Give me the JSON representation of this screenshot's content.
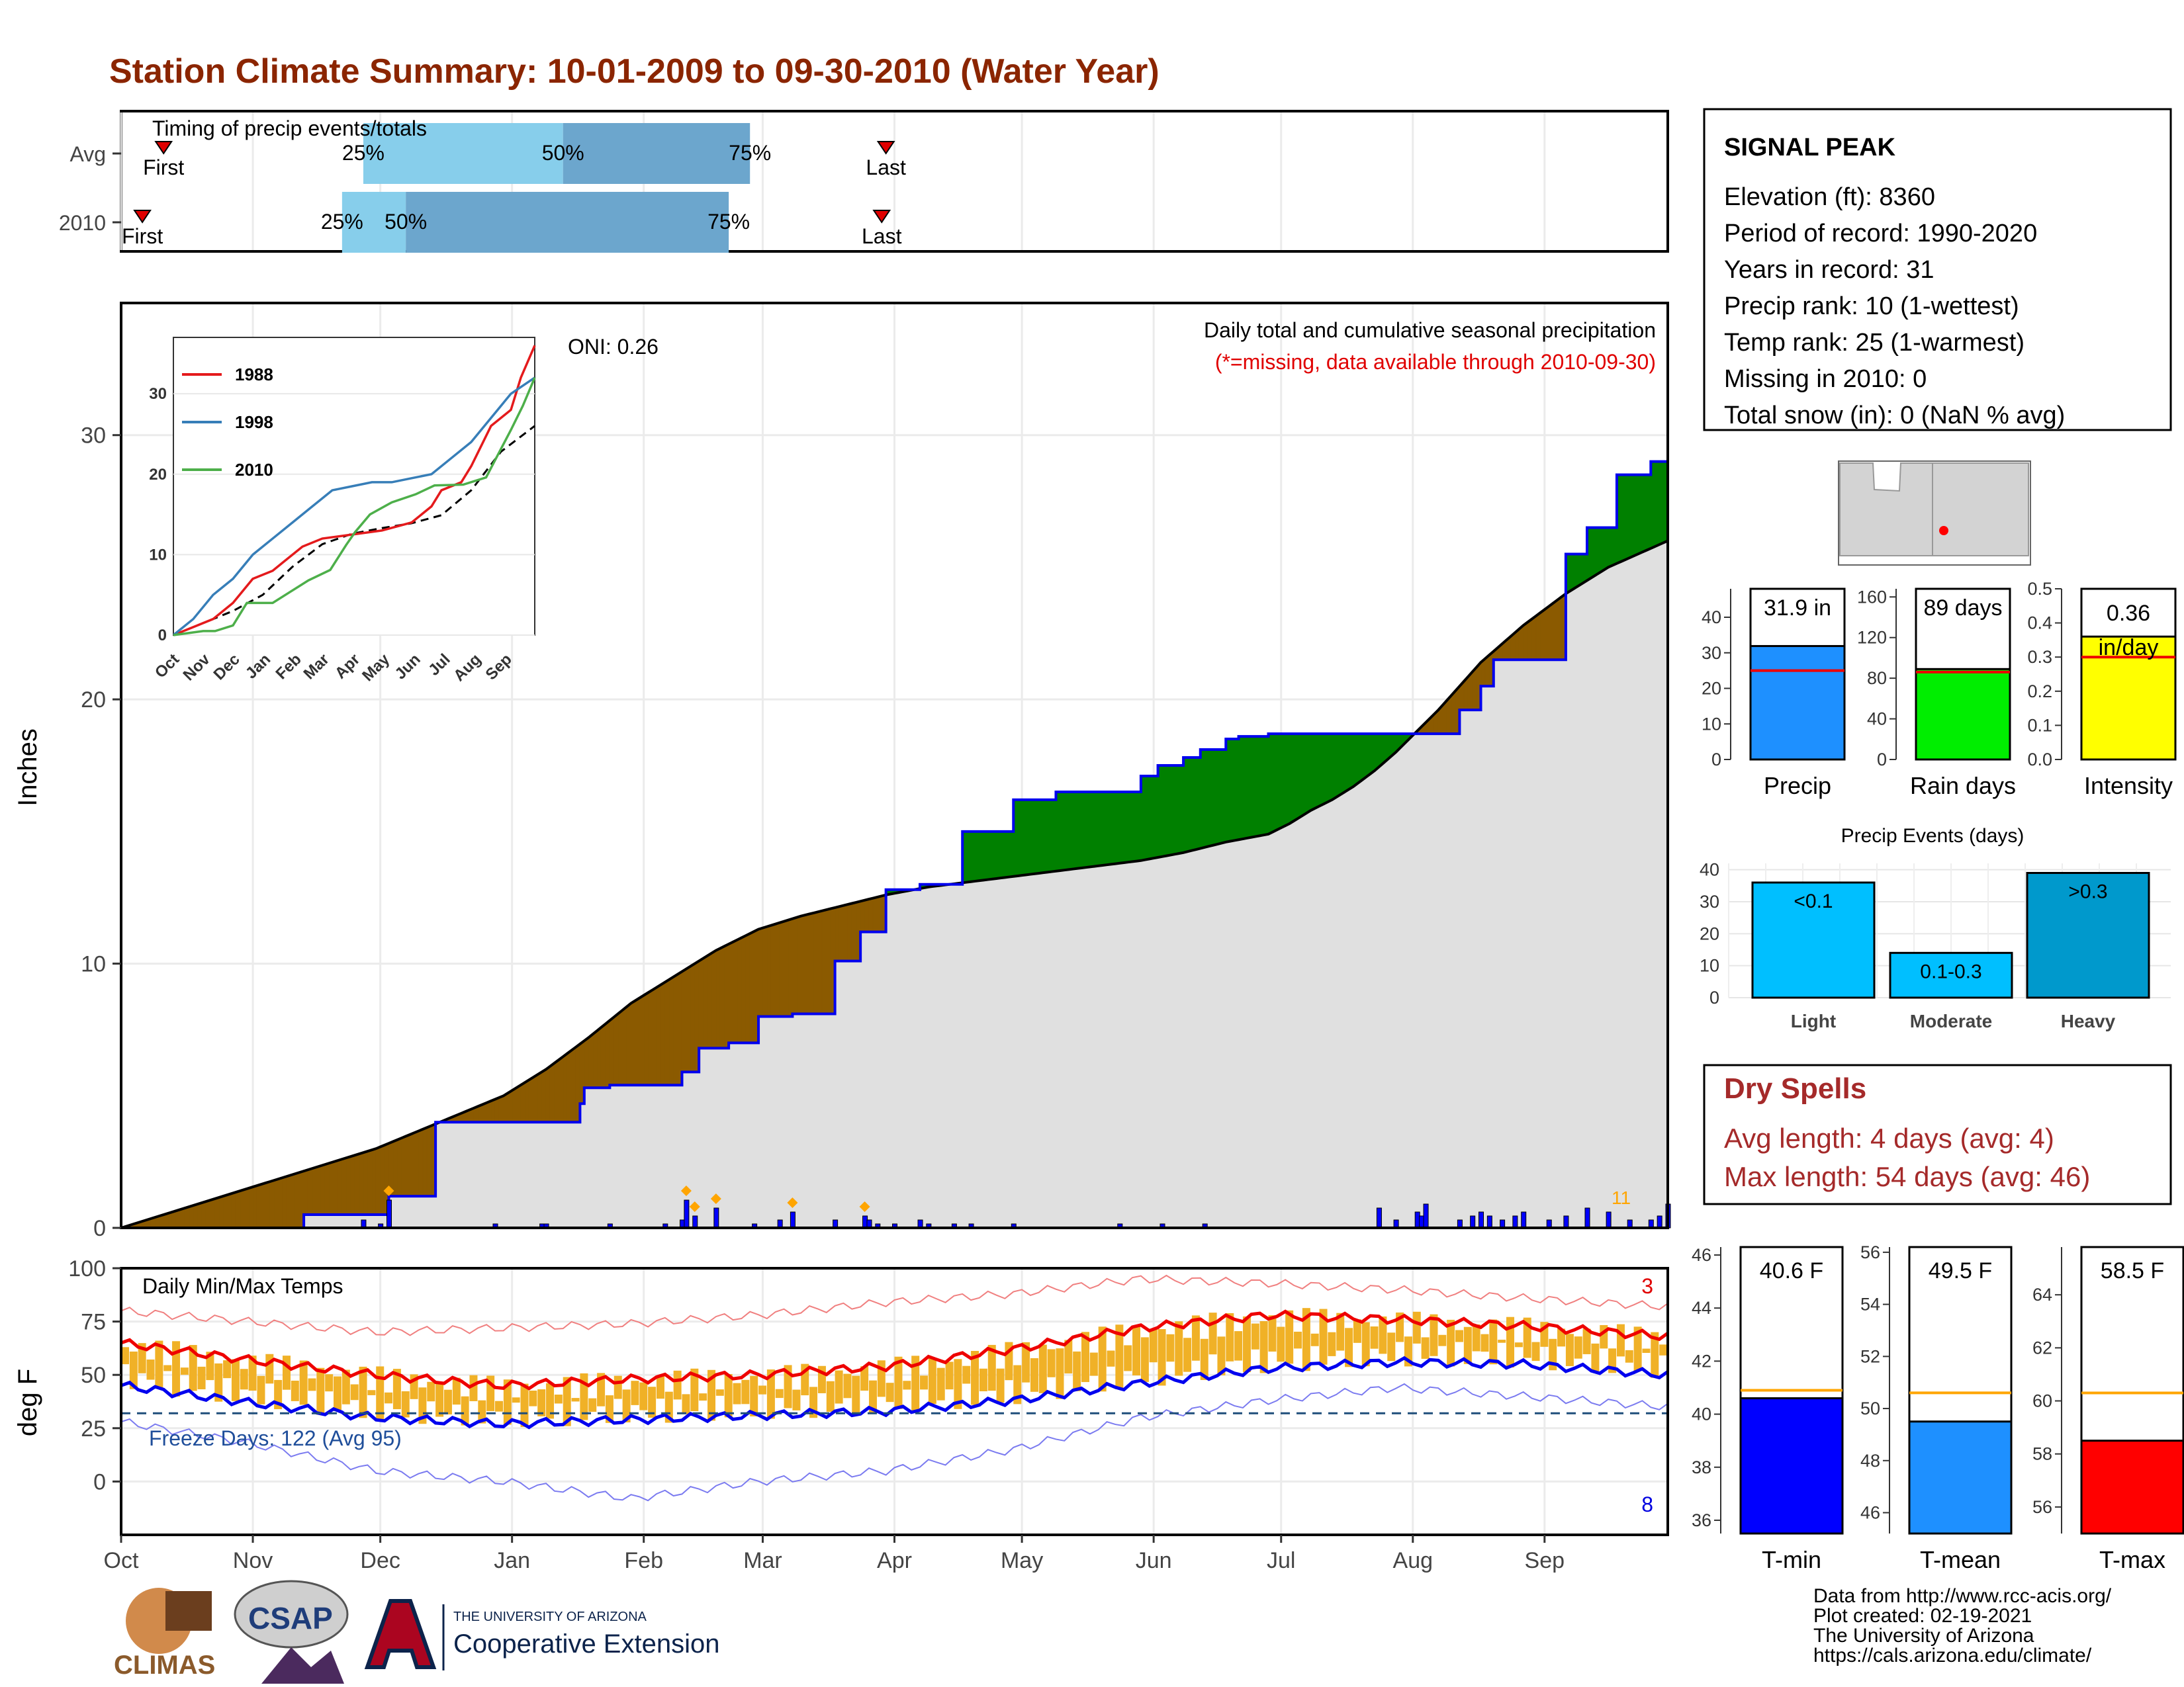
{
  "title": "Station Climate Summary: 10-01-2009 to 09-30-2010 (Water Year)",
  "months": [
    "Oct",
    "Nov",
    "Dec",
    "Jan",
    "Feb",
    "Mar",
    "Apr",
    "May",
    "Jun",
    "Jul",
    "Aug",
    "Sep"
  ],
  "timing": {
    "label": "Timing of precip events/totals",
    "rows": [
      {
        "name": "Avg",
        "first": 10,
        "q25": 57,
        "q50": 104,
        "q75": 148,
        "last": 180
      },
      {
        "name": "2010",
        "first": 5,
        "q25": 52,
        "q50": 67,
        "q75": 143,
        "last": 179
      }
    ],
    "first_label": "First",
    "last_label": "Last",
    "q_labels": [
      "25%",
      "50%",
      "75%"
    ]
  },
  "station": {
    "name": "SIGNAL PEAK",
    "lines": [
      "Elevation (ft): 8360",
      "Period of record: 1990-2020",
      "Years in record: 31",
      "Precip rank: 10 (1-wettest)",
      "Temp rank: 25 (1-warmest)",
      "Missing in 2010: 0",
      "Total snow (in): 0 (NaN % avg)"
    ]
  },
  "chart_data": [
    {
      "id": "precip",
      "type": "area",
      "ylabel": "Inches",
      "ylim": [
        0,
        35
      ],
      "yticks": [
        0,
        10,
        20,
        30
      ],
      "title": "Daily total and cumulative seasonal precipitation",
      "subtitle": "(*=missing, data available through 2010-09-30)",
      "oni": "ONI: 0.26",
      "corner_count": "11",
      "series": [
        {
          "name": "observed cumulative",
          "x_day": [
            0,
            42,
            43,
            60,
            63,
            70,
            74,
            100,
            108,
            109,
            112,
            115,
            118,
            126,
            132,
            136,
            140,
            143,
            150,
            158,
            168,
            174,
            180,
            183,
            188,
            198,
            210,
            220,
            240,
            244,
            250,
            254,
            260,
            263,
            270,
            276,
            280,
            292,
            305,
            315,
            320,
            323,
            340,
            345,
            352,
            360,
            364
          ],
          "y": [
            0,
            0,
            0.5,
            0.5,
            1.2,
            1.2,
            4.0,
            4.0,
            4.7,
            5.3,
            5.3,
            5.4,
            5.4,
            5.4,
            5.9,
            6.8,
            6.8,
            7.0,
            8.0,
            8.1,
            10.1,
            11.2,
            12.8,
            12.8,
            13.0,
            15.0,
            16.2,
            16.5,
            17.1,
            17.5,
            17.8,
            18.1,
            18.5,
            18.6,
            18.7,
            18.7,
            18.7,
            18.7,
            18.7,
            19.6,
            20.5,
            21.5,
            25.5,
            26.5,
            28.5,
            29.0,
            32.0
          ]
        },
        {
          "name": "average cumulative",
          "x_day": [
            0,
            30,
            60,
            90,
            100,
            110,
            120,
            130,
            140,
            150,
            160,
            170,
            180,
            190,
            200,
            210,
            220,
            230,
            240,
            250,
            260,
            270,
            275,
            280,
            285,
            290,
            295,
            300,
            305,
            310,
            315,
            320,
            330,
            340,
            350,
            364
          ],
          "y": [
            0,
            1.5,
            3.0,
            5.0,
            6.0,
            7.2,
            8.5,
            9.5,
            10.5,
            11.3,
            11.8,
            12.2,
            12.6,
            12.9,
            13.1,
            13.3,
            13.5,
            13.7,
            13.9,
            14.2,
            14.6,
            14.9,
            15.3,
            15.8,
            16.2,
            16.7,
            17.3,
            18.0,
            18.8,
            19.6,
            20.5,
            21.4,
            22.8,
            24.0,
            25.0,
            26.0
          ]
        }
      ],
      "daily_bars": {
        "x_day": [
          57,
          61,
          63,
          88,
          99,
          100,
          115,
          128,
          132,
          133,
          135,
          140,
          149,
          155,
          158,
          168,
          175,
          176,
          178,
          182,
          188,
          190,
          196,
          200,
          210,
          235,
          245,
          255,
          296,
          300,
          305,
          306,
          307,
          315,
          318,
          320,
          322,
          325,
          328,
          330,
          336,
          340,
          345,
          350,
          355,
          360,
          362,
          364
        ],
        "y": [
          0.2,
          0.1,
          0.7,
          0.1,
          0.1,
          0.1,
          0.1,
          0.1,
          0.2,
          0.7,
          0.3,
          0.5,
          0.1,
          0.2,
          0.4,
          0.2,
          0.3,
          0.2,
          0.1,
          0.1,
          0.2,
          0.1,
          0.1,
          0.1,
          0.1,
          0.1,
          0.1,
          0.1,
          0.5,
          0.2,
          0.4,
          0.3,
          0.6,
          0.2,
          0.3,
          0.4,
          0.3,
          0.2,
          0.3,
          0.4,
          0.2,
          0.3,
          0.5,
          0.4,
          0.2,
          0.2,
          0.3,
          0.6
        ]
      }
    },
    {
      "id": "inset",
      "type": "line",
      "ylim": [
        0,
        37
      ],
      "yticks": [
        0,
        10,
        20,
        30
      ],
      "months": [
        "Oct",
        "Nov",
        "Dec",
        "Jan",
        "Feb",
        "Mar",
        "Apr",
        "May",
        "Jun",
        "Jul",
        "Aug",
        "Sep"
      ],
      "series": [
        {
          "name": "1988",
          "color": "#e41a1c",
          "x_day": [
            0,
            20,
            40,
            60,
            80,
            100,
            110,
            130,
            150,
            180,
            210,
            240,
            260,
            270,
            290,
            300,
            320,
            340,
            350,
            364
          ],
          "y": [
            0,
            1,
            2,
            4,
            7,
            8,
            9,
            11,
            12,
            12.5,
            13,
            14,
            16,
            18,
            19,
            21,
            26,
            28,
            32,
            36
          ]
        },
        {
          "name": "1998",
          "color": "#377eb8",
          "x_day": [
            0,
            20,
            40,
            60,
            80,
            100,
            120,
            140,
            160,
            180,
            200,
            220,
            240,
            260,
            280,
            300,
            320,
            340,
            364
          ],
          "y": [
            0,
            2,
            5,
            7,
            10,
            12,
            14,
            16,
            18,
            18.5,
            19,
            19,
            19.5,
            20,
            22,
            24,
            27,
            30,
            32
          ]
        },
        {
          "name": "2010",
          "color": "#4daf4a",
          "x_day": [
            0,
            30,
            42,
            60,
            74,
            100,
            118,
            136,
            158,
            174,
            183,
            198,
            220,
            244,
            263,
            292,
            315,
            323,
            340,
            352,
            364
          ],
          "y": [
            0,
            0.5,
            0.5,
            1.2,
            4,
            4,
            5.4,
            6.8,
            8.1,
            11.2,
            12.8,
            15,
            16.5,
            17.5,
            18.6,
            18.7,
            19.6,
            21.5,
            25.5,
            28.5,
            32
          ]
        }
      ],
      "avg_series": {
        "name": "average",
        "x_day": [
          0,
          30,
          60,
          90,
          120,
          150,
          180,
          210,
          240,
          270,
          300,
          330,
          364
        ],
        "y": [
          0,
          1.5,
          3,
          5,
          8.5,
          11.3,
          12.6,
          13.3,
          13.9,
          14.9,
          18,
          22.8,
          26
        ]
      }
    },
    {
      "id": "temps",
      "type": "line",
      "title": "Daily Min/Max Temps",
      "ylabel": "deg F",
      "ylim": [
        -25,
        100
      ],
      "yticks": [
        0,
        25,
        50,
        75,
        100
      ],
      "freeze_label": "Freeze Days: 122 (Avg 95)",
      "freeze_line": 32,
      "record_high_count": "3",
      "record_low_count": "8",
      "avg_max": {
        "x_day": [
          0,
          30,
          60,
          90,
          120,
          150,
          180,
          210,
          240,
          270,
          300,
          330,
          364
        ],
        "y": [
          65,
          57,
          50,
          45,
          48,
          50,
          54,
          62,
          72,
          78,
          76,
          73,
          68
        ]
      },
      "avg_min": {
        "x_day": [
          0,
          30,
          60,
          90,
          120,
          150,
          180,
          210,
          240,
          270,
          300,
          330,
          364
        ],
        "y": [
          45,
          37,
          30,
          27,
          29,
          31,
          33,
          38,
          46,
          53,
          56,
          55,
          50
        ]
      },
      "record_max": {
        "x_day": [
          0,
          30,
          60,
          90,
          120,
          150,
          180,
          210,
          240,
          270,
          300,
          330,
          364
        ],
        "y": [
          80,
          75,
          70,
          72,
          74,
          78,
          84,
          88,
          95,
          93,
          90,
          86,
          82
        ]
      },
      "record_min": {
        "x_day": [
          0,
          30,
          60,
          90,
          120,
          150,
          180,
          210,
          240,
          270,
          300,
          330,
          364
        ],
        "y": [
          28,
          18,
          5,
          0,
          -8,
          0,
          5,
          15,
          30,
          38,
          44,
          40,
          35
        ]
      }
    },
    {
      "id": "season",
      "type": "bar",
      "panels": [
        {
          "name": "Precip",
          "label": "31.9 in",
          "value": 31.9,
          "avg": 25,
          "ylim": [
            0,
            48
          ],
          "yticks": [
            0,
            10,
            20,
            30,
            40
          ],
          "color": "#1e90ff"
        },
        {
          "name": "Rain days",
          "label": "89 days",
          "value": 89,
          "avg": 86,
          "ylim": [
            0,
            168
          ],
          "yticks": [
            0,
            40,
            80,
            120,
            160
          ],
          "color": "#00ee00"
        },
        {
          "name": "Intensity",
          "label": "0.36 in/day",
          "value": 0.36,
          "avg": 0.3,
          "ylim": [
            0,
            0.5
          ],
          "yticks": [
            0.0,
            0.1,
            0.2,
            0.3,
            0.4,
            0.5
          ],
          "color": "#ffff00"
        }
      ]
    },
    {
      "id": "events",
      "type": "bar",
      "title": "Precip Events (days)",
      "categories": [
        "Light",
        "Moderate",
        "Heavy"
      ],
      "bar_labels": [
        "<0.1",
        "0.1-0.3",
        ">0.3"
      ],
      "values": [
        36,
        14,
        39
      ],
      "ylim": [
        0,
        42
      ],
      "yticks": [
        0,
        10,
        20,
        30,
        40
      ]
    },
    {
      "id": "tempbars",
      "type": "bar",
      "panels": [
        {
          "name": "T-min",
          "label": "40.6 F",
          "value": 40.6,
          "avg": 40.9,
          "ylim": [
            35.5,
            46.3
          ],
          "yticks": [
            36,
            38,
            40,
            42,
            44,
            46
          ],
          "color": "#0000ff"
        },
        {
          "name": "T-mean",
          "label": "49.5 F",
          "value": 49.5,
          "avg": 50.6,
          "ylim": [
            45.2,
            56.2
          ],
          "yticks": [
            46,
            48,
            50,
            52,
            54,
            56
          ],
          "color": "#1e90ff"
        },
        {
          "name": "T-max",
          "label": "58.5 F",
          "value": 58.5,
          "avg": 60.3,
          "ylim": [
            55.0,
            65.8
          ],
          "yticks": [
            56,
            58,
            60,
            62,
            64
          ],
          "color": "#ff0000"
        }
      ]
    }
  ],
  "dry_spells": {
    "title": "Dry Spells",
    "avg": "Avg length: 4 days (avg: 4)",
    "max": "Max length: 54 days (avg: 46)"
  },
  "logos": {
    "climas": "CLIMAS",
    "csap": "CSAP",
    "univ": "THE UNIVERSITY OF ARIZONA",
    "coop": "Cooperative Extension"
  },
  "footer": [
    "Data from http://www.rcc-acis.org/",
    "Plot created: 02-19-2021",
    "The University of Arizona",
    "https://cals.arizona.edu/climate/"
  ]
}
